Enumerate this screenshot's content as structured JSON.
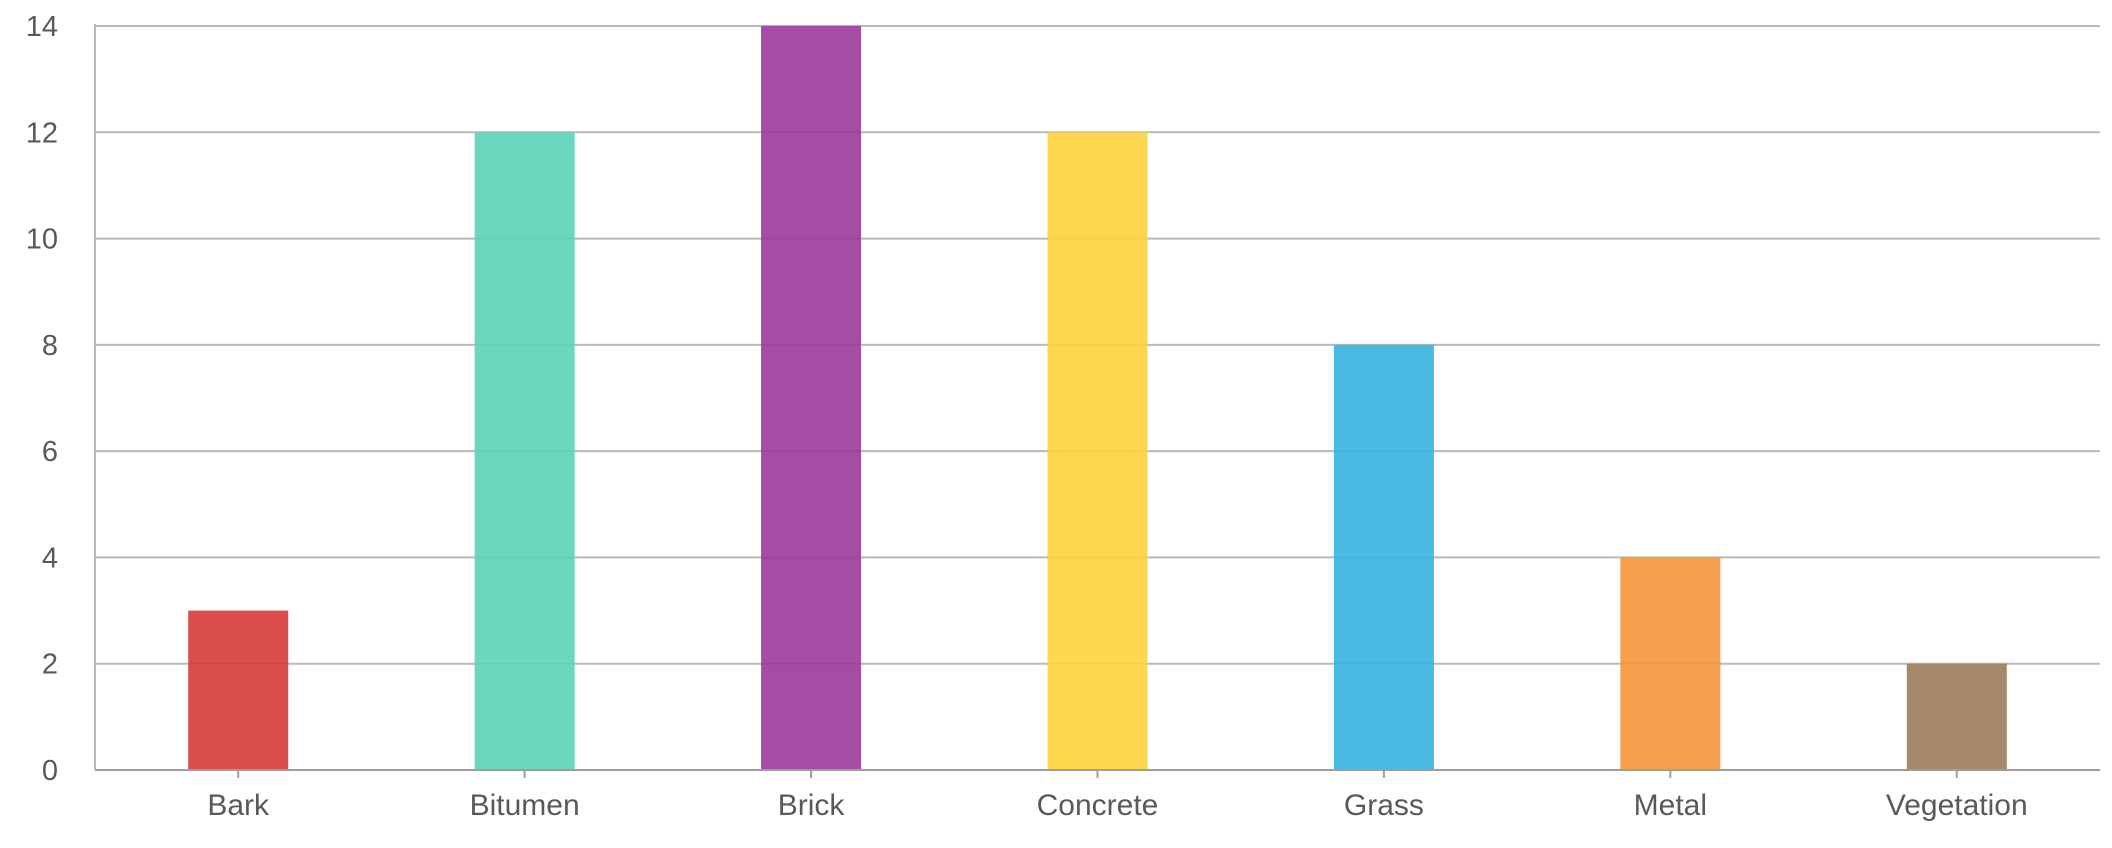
{
  "chart_data": {
    "type": "bar",
    "title": "",
    "xlabel": "",
    "ylabel": "",
    "categories": [
      "Bark",
      "Bitumen",
      "Brick",
      "Concrete",
      "Grass",
      "Metal",
      "Vegetation"
    ],
    "values": [
      3,
      12,
      14,
      12,
      8,
      4,
      2
    ],
    "colors": [
      "#d63a3a",
      "#5bd3b8",
      "#9b3a9b",
      "#fdd33c",
      "#36b2e0",
      "#f4963a",
      "#9c7b5a"
    ],
    "ylim": [
      0,
      14
    ],
    "yticks": [
      0,
      2,
      4,
      6,
      8,
      10,
      12,
      14
    ],
    "grid": true,
    "legend": "none"
  }
}
